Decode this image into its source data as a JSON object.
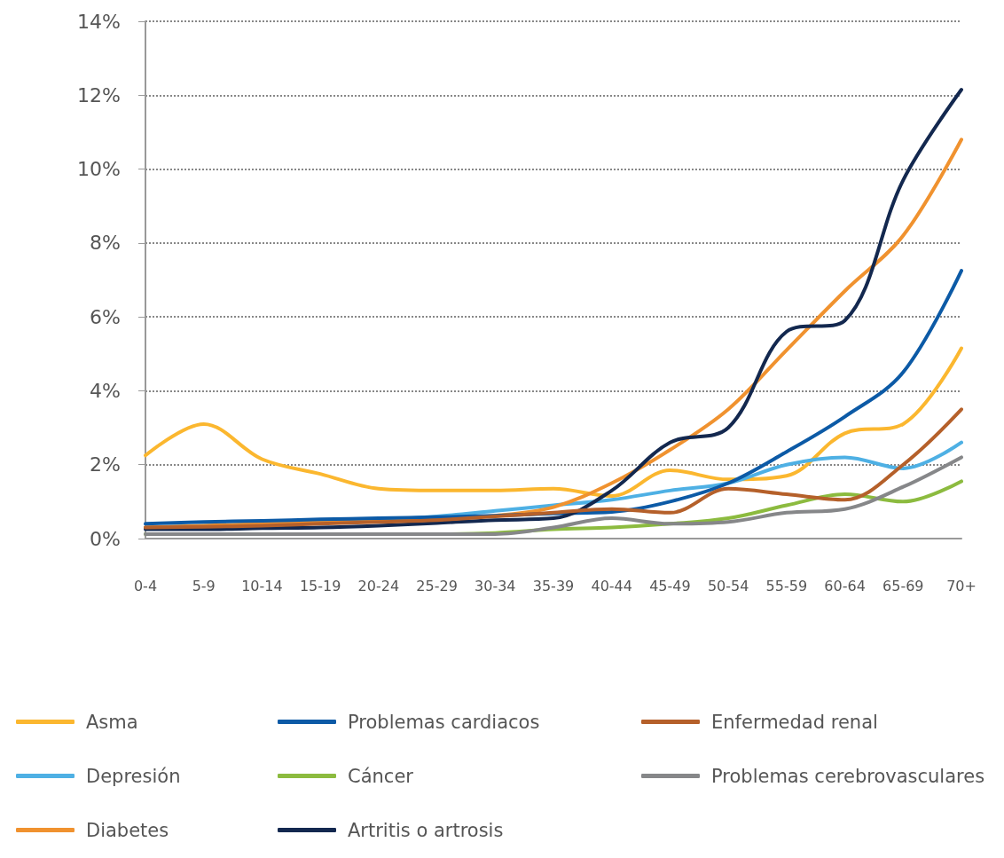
{
  "chart_data": {
    "type": "line",
    "categories": [
      "0-4",
      "5-9",
      "10-14",
      "15-19",
      "20-24",
      "25-29",
      "30-34",
      "35-39",
      "40-44",
      "45-49",
      "50-54",
      "55-59",
      "60-64",
      "65-69",
      "70+"
    ],
    "ylim": [
      0,
      14
    ],
    "yticks": [
      {
        "value": 0,
        "label": "0%"
      },
      {
        "value": 2,
        "label": "2%"
      },
      {
        "value": 4,
        "label": "4%"
      },
      {
        "value": 6,
        "label": "6%"
      },
      {
        "value": 8,
        "label": "8%"
      },
      {
        "value": 10,
        "label": "10%"
      },
      {
        "value": 12,
        "label": "12%"
      },
      {
        "value": 14,
        "label": "14%"
      }
    ],
    "grid": "y",
    "legend": "bottom",
    "marker": "none",
    "line_style": "solid",
    "series": [
      {
        "name": "Asma",
        "color": "#fbb72f",
        "values": [
          2.25,
          3.1,
          2.15,
          1.75,
          1.35,
          1.3,
          1.3,
          1.35,
          1.15,
          1.85,
          1.6,
          1.7,
          2.85,
          3.1,
          5.15
        ]
      },
      {
        "name": "Depresión",
        "color": "#4eb0e4",
        "values": [
          0.3,
          0.35,
          0.4,
          0.45,
          0.5,
          0.6,
          0.75,
          0.9,
          1.05,
          1.3,
          1.5,
          2.0,
          2.2,
          1.9,
          2.6
        ]
      },
      {
        "name": "Diabetes",
        "color": "#f0922f",
        "values": [
          0.3,
          0.35,
          0.4,
          0.45,
          0.5,
          0.55,
          0.62,
          0.85,
          1.5,
          2.4,
          3.5,
          5.1,
          6.7,
          8.2,
          10.8
        ]
      },
      {
        "name": "Problemas cardiacos",
        "color": "#0c5aa6",
        "values": [
          0.4,
          0.45,
          0.48,
          0.52,
          0.55,
          0.58,
          0.62,
          0.68,
          0.72,
          1.0,
          1.5,
          2.35,
          3.3,
          4.5,
          7.25
        ]
      },
      {
        "name": "Cáncer",
        "color": "#8cbb3f",
        "values": [
          0.12,
          0.12,
          0.12,
          0.12,
          0.12,
          0.12,
          0.15,
          0.25,
          0.3,
          0.4,
          0.55,
          0.9,
          1.2,
          1.0,
          1.55
        ]
      },
      {
        "name": "Artritis o artrosis",
        "color": "#13284f",
        "values": [
          0.25,
          0.25,
          0.28,
          0.3,
          0.35,
          0.42,
          0.5,
          0.55,
          1.3,
          2.6,
          3.0,
          5.6,
          5.9,
          9.7,
          12.15
        ]
      },
      {
        "name": "Enfermedad renal",
        "color": "#b5602a",
        "values": [
          0.3,
          0.32,
          0.35,
          0.4,
          0.45,
          0.5,
          0.6,
          0.7,
          0.8,
          0.7,
          1.35,
          1.2,
          1.05,
          2.0,
          3.5
        ]
      },
      {
        "name": "Problemas cerebrovasculares",
        "color": "#868789",
        "values": [
          0.12,
          0.12,
          0.12,
          0.12,
          0.12,
          0.12,
          0.12,
          0.3,
          0.55,
          0.4,
          0.45,
          0.7,
          0.8,
          1.4,
          2.2
        ]
      }
    ]
  }
}
